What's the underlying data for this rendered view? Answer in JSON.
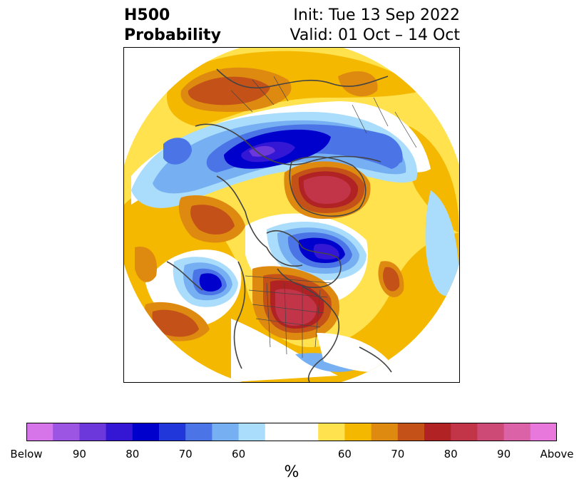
{
  "title": {
    "left_line1": "H500",
    "left_line2": "Probability",
    "right_line1": "Init: Tue 13 Sep 2022",
    "right_line2": "Valid: 01 Oct – 14 Oct"
  },
  "colorbar": {
    "unit": "%",
    "tick_labels": [
      "Below",
      "90",
      "80",
      "70",
      "60",
      "60",
      "70",
      "80",
      "90",
      "Above"
    ],
    "colors": [
      "#d674ea",
      "#9b55e2",
      "#6c38dc",
      "#3417d4",
      "#0000cc",
      "#2237da",
      "#4b74e6",
      "#76b0f2",
      "#aadcfc",
      "#ffffff",
      "#ffffff",
      "#ffe24e",
      "#f5b800",
      "#de8a10",
      "#c45218",
      "#b02224",
      "#c23448",
      "#cd4a76",
      "#dc62a8",
      "#e878dc"
    ]
  },
  "map": {
    "colors": {
      "above_60": "#ffe24e",
      "above_65": "#f5b800",
      "above_70": "#de8a10",
      "above_75": "#c45218",
      "above_80": "#b02224",
      "above_85": "#c23448",
      "above_90": "#cd4a76",
      "below_60": "#aadcfc",
      "below_65": "#76b0f2",
      "below_70": "#4b74e6",
      "below_75": "#2237da",
      "below_80": "#0000cc",
      "below_85": "#3417d4",
      "below_90": "#6c38dc",
      "coast": "#444444"
    }
  }
}
